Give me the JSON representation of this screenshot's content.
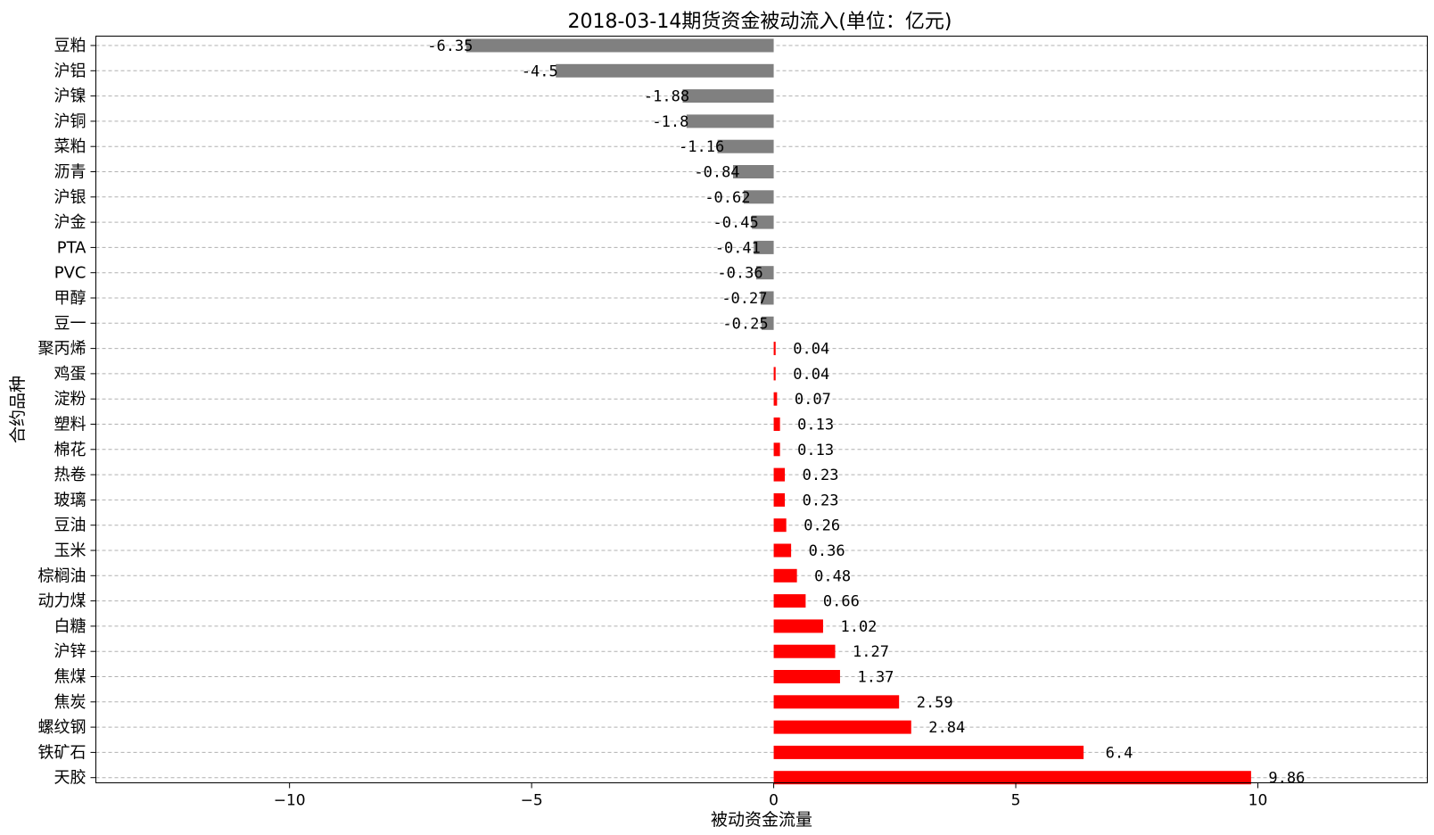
{
  "chart_data": {
    "type": "bar",
    "orientation": "horizontal",
    "title": "2018-03-14期货资金被动流入(单位：亿元)",
    "xlabel": "被动资金流量",
    "ylabel": "合约品种",
    "xlim": [
      -14,
      13.5
    ],
    "xticks": [
      -10,
      -5,
      0,
      5,
      10
    ],
    "xtick_labels": [
      "−10",
      "−5",
      "0",
      "5",
      "10"
    ],
    "grid": "horizontal dashed",
    "colors": {
      "negative": "#808080",
      "positive": "#ff0000"
    },
    "categories": [
      "豆粕",
      "沪铝",
      "沪镍",
      "沪铜",
      "菜粕",
      "沥青",
      "沪银",
      "沪金",
      "PTA",
      "PVC",
      "甲醇",
      "豆一",
      "聚丙烯",
      "鸡蛋",
      "淀粉",
      "塑料",
      "棉花",
      "热卷",
      "玻璃",
      "豆油",
      "玉米",
      "棕榈油",
      "动力煤",
      "白糖",
      "沪锌",
      "焦煤",
      "焦炭",
      "螺纹钢",
      "铁矿石",
      "天胶"
    ],
    "values": [
      -6.35,
      -4.5,
      -1.88,
      -1.8,
      -1.16,
      -0.84,
      -0.62,
      -0.45,
      -0.41,
      -0.36,
      -0.27,
      -0.25,
      0.04,
      0.04,
      0.07,
      0.13,
      0.13,
      0.23,
      0.23,
      0.26,
      0.36,
      0.48,
      0.66,
      1.02,
      1.27,
      1.37,
      2.59,
      2.84,
      6.4,
      9.86
    ],
    "labels": [
      "-6.35",
      "-4.5",
      "-1.88",
      "-1.8",
      "-1.16",
      "-0.84",
      "-0.62",
      "-0.45",
      "-0.41",
      "-0.36",
      "-0.27",
      "-0.25",
      "0.04",
      "0.04",
      "0.07",
      "0.13",
      "0.13",
      "0.23",
      "0.23",
      "0.26",
      "0.36",
      "0.48",
      "0.66",
      "1.02",
      "1.27",
      "1.37",
      "2.59",
      "2.84",
      "6.4",
      "9.86"
    ]
  }
}
